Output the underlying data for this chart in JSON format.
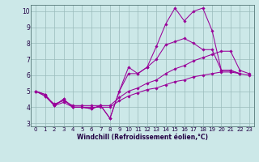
{
  "xlabel": "Windchill (Refroidissement éolien,°C)",
  "background_color": "#cce8e8",
  "line_color": "#990099",
  "grid_color": "#99bbbb",
  "xlim": [
    -0.5,
    23.5
  ],
  "ylim": [
    2.8,
    10.4
  ],
  "xticks": [
    0,
    1,
    2,
    3,
    4,
    5,
    6,
    7,
    8,
    9,
    10,
    11,
    12,
    13,
    14,
    15,
    16,
    17,
    18,
    19,
    20,
    21,
    22,
    23
  ],
  "yticks": [
    3,
    4,
    5,
    6,
    7,
    8,
    9,
    10
  ],
  "line1_x": [
    0,
    1,
    2,
    3,
    4,
    5,
    6,
    7,
    8,
    9,
    10,
    11,
    12,
    13,
    14,
    15,
    16,
    17,
    18,
    19,
    20,
    21,
    22
  ],
  "line1_y": [
    5.0,
    4.8,
    4.1,
    4.5,
    4.0,
    4.0,
    3.9,
    4.1,
    3.3,
    5.0,
    6.5,
    6.1,
    6.5,
    7.8,
    9.2,
    10.2,
    9.4,
    10.0,
    10.2,
    8.8,
    6.3,
    6.3,
    6.1
  ],
  "line2_x": [
    0,
    1,
    2,
    3,
    4,
    5,
    6,
    7,
    8,
    9,
    10,
    11,
    12,
    13,
    14,
    15,
    16,
    17,
    18,
    19,
    20,
    21,
    22
  ],
  "line2_y": [
    5.0,
    4.8,
    4.1,
    4.5,
    4.0,
    4.0,
    3.9,
    4.1,
    3.3,
    5.0,
    6.1,
    6.1,
    6.5,
    7.0,
    7.9,
    8.1,
    8.3,
    8.0,
    7.6,
    7.6,
    6.3,
    6.3,
    6.1
  ],
  "line3_x": [
    0,
    1,
    2,
    3,
    4,
    5,
    6,
    7,
    8,
    9,
    10,
    11,
    12,
    13,
    14,
    15,
    16,
    17,
    18,
    19,
    20,
    21,
    22,
    23
  ],
  "line3_y": [
    5.0,
    4.7,
    4.2,
    4.4,
    4.1,
    4.1,
    4.1,
    4.1,
    4.1,
    4.6,
    5.0,
    5.2,
    5.5,
    5.7,
    6.1,
    6.4,
    6.6,
    6.9,
    7.1,
    7.3,
    7.5,
    7.5,
    6.3,
    6.1
  ],
  "line4_x": [
    0,
    1,
    2,
    3,
    4,
    5,
    6,
    7,
    8,
    9,
    10,
    11,
    12,
    13,
    14,
    15,
    16,
    17,
    18,
    19,
    20,
    21,
    22,
    23
  ],
  "line4_y": [
    5.0,
    4.7,
    4.1,
    4.3,
    4.0,
    4.0,
    4.0,
    4.0,
    4.0,
    4.4,
    4.7,
    4.9,
    5.1,
    5.2,
    5.4,
    5.6,
    5.7,
    5.9,
    6.0,
    6.1,
    6.2,
    6.2,
    6.1,
    6.0
  ],
  "tick_fontsize": 5,
  "xlabel_fontsize": 5.5
}
